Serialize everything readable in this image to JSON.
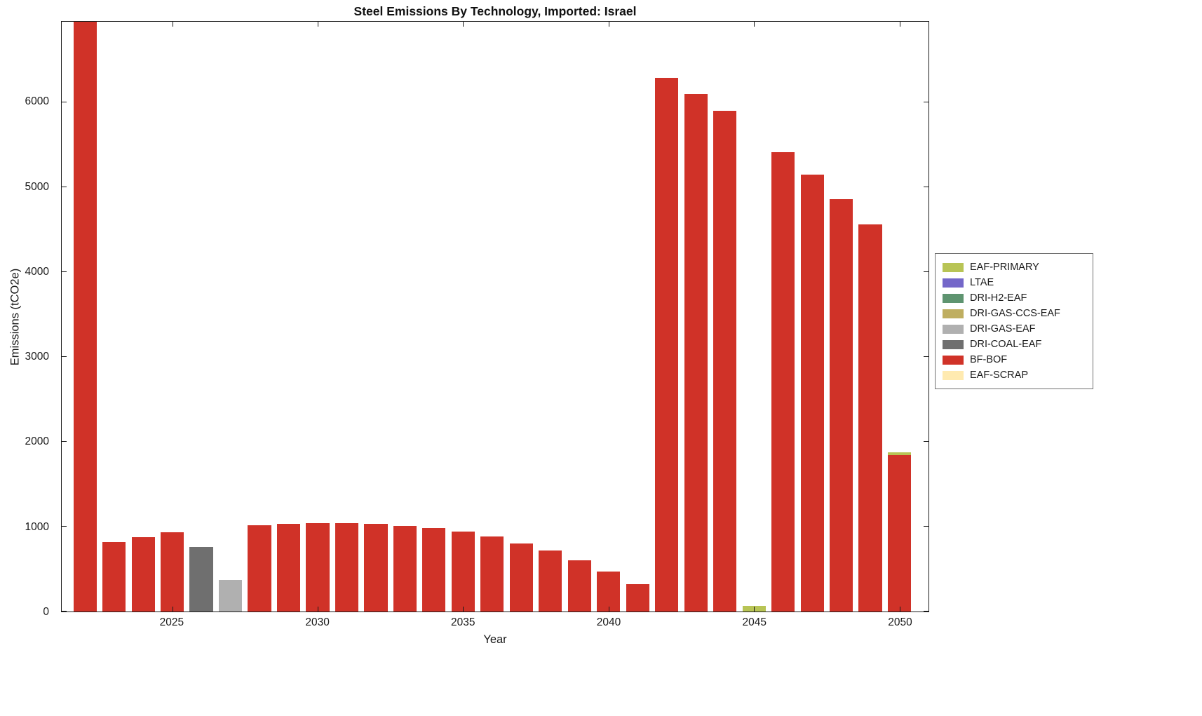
{
  "chart_data": {
    "type": "bar",
    "stacked": true,
    "title": "Steel Emissions By Technology, Imported: Israel",
    "xlabel": "Year",
    "ylabel": "Emissions (tCO2e)",
    "grid": false,
    "legend_position": "outside-right",
    "xlim": [
      2021.2,
      2051.0
    ],
    "ylim": [
      0,
      6950
    ],
    "yticks": [
      0,
      1000,
      2000,
      3000,
      4000,
      5000,
      6000
    ],
    "xticks": [
      2025,
      2030,
      2035,
      2040,
      2045,
      2050
    ],
    "bar_width": 0.8,
    "categories": [
      2022,
      2023,
      2024,
      2025,
      2026,
      2027,
      2028,
      2029,
      2030,
      2031,
      2032,
      2033,
      2034,
      2035,
      2036,
      2037,
      2038,
      2039,
      2040,
      2041,
      2042,
      2043,
      2044,
      2045,
      2046,
      2047,
      2048,
      2049,
      2050
    ],
    "stack_order": [
      "EAF-SCRAP",
      "BF-BOF",
      "DRI-COAL-EAF",
      "DRI-GAS-EAF",
      "DRI-GAS-CCS-EAF",
      "DRI-H2-EAF",
      "LTAE",
      "EAF-PRIMARY"
    ],
    "series": [
      {
        "name": "EAF-PRIMARY",
        "color": "#b8c455",
        "values": [
          0,
          0,
          0,
          0,
          0,
          0,
          0,
          0,
          0,
          0,
          0,
          0,
          0,
          0,
          0,
          0,
          0,
          0,
          0,
          0,
          0,
          0,
          0,
          70,
          0,
          0,
          0,
          0,
          35
        ]
      },
      {
        "name": "LTAE",
        "color": "#7467c9",
        "values": [
          0,
          0,
          0,
          0,
          0,
          0,
          0,
          0,
          0,
          0,
          0,
          0,
          0,
          0,
          0,
          0,
          0,
          0,
          0,
          0,
          0,
          0,
          0,
          0,
          0,
          0,
          0,
          0,
          0
        ]
      },
      {
        "name": "DRI-H2-EAF",
        "color": "#5e9470",
        "values": [
          0,
          0,
          0,
          0,
          0,
          0,
          0,
          0,
          0,
          0,
          0,
          0,
          0,
          0,
          0,
          0,
          0,
          0,
          0,
          0,
          0,
          0,
          0,
          0,
          0,
          0,
          0,
          0,
          0
        ]
      },
      {
        "name": "DRI-GAS-CCS-EAF",
        "color": "#bfae60",
        "values": [
          0,
          0,
          0,
          0,
          0,
          0,
          0,
          0,
          0,
          0,
          0,
          0,
          0,
          0,
          0,
          0,
          0,
          0,
          0,
          0,
          0,
          0,
          0,
          0,
          0,
          0,
          0,
          0,
          0
        ]
      },
      {
        "name": "DRI-GAS-EAF",
        "color": "#b0b0b0",
        "values": [
          0,
          0,
          0,
          0,
          0,
          370,
          0,
          0,
          0,
          0,
          0,
          0,
          0,
          0,
          0,
          0,
          0,
          0,
          0,
          0,
          0,
          0,
          0,
          0,
          0,
          0,
          0,
          0,
          0
        ]
      },
      {
        "name": "DRI-COAL-EAF",
        "color": "#6f6f6f",
        "values": [
          0,
          0,
          0,
          0,
          760,
          0,
          0,
          0,
          0,
          0,
          0,
          0,
          0,
          0,
          0,
          0,
          0,
          0,
          0,
          0,
          0,
          0,
          0,
          0,
          0,
          0,
          0,
          0,
          0
        ]
      },
      {
        "name": "BF-BOF",
        "color": "#d03228",
        "values": [
          6950,
          820,
          880,
          930,
          0,
          0,
          1020,
          1030,
          1040,
          1040,
          1030,
          1010,
          985,
          945,
          885,
          805,
          715,
          605,
          470,
          320,
          6290,
          6100,
          5900,
          0,
          5410,
          5150,
          4860,
          4560,
          1840
        ]
      },
      {
        "name": "EAF-SCRAP",
        "color": "#ffeab0",
        "values": [
          0,
          0,
          0,
          0,
          0,
          0,
          0,
          0,
          0,
          0,
          0,
          0,
          0,
          0,
          0,
          0,
          0,
          0,
          0,
          0,
          0,
          0,
          0,
          0,
          0,
          0,
          0,
          0,
          0
        ]
      }
    ]
  }
}
